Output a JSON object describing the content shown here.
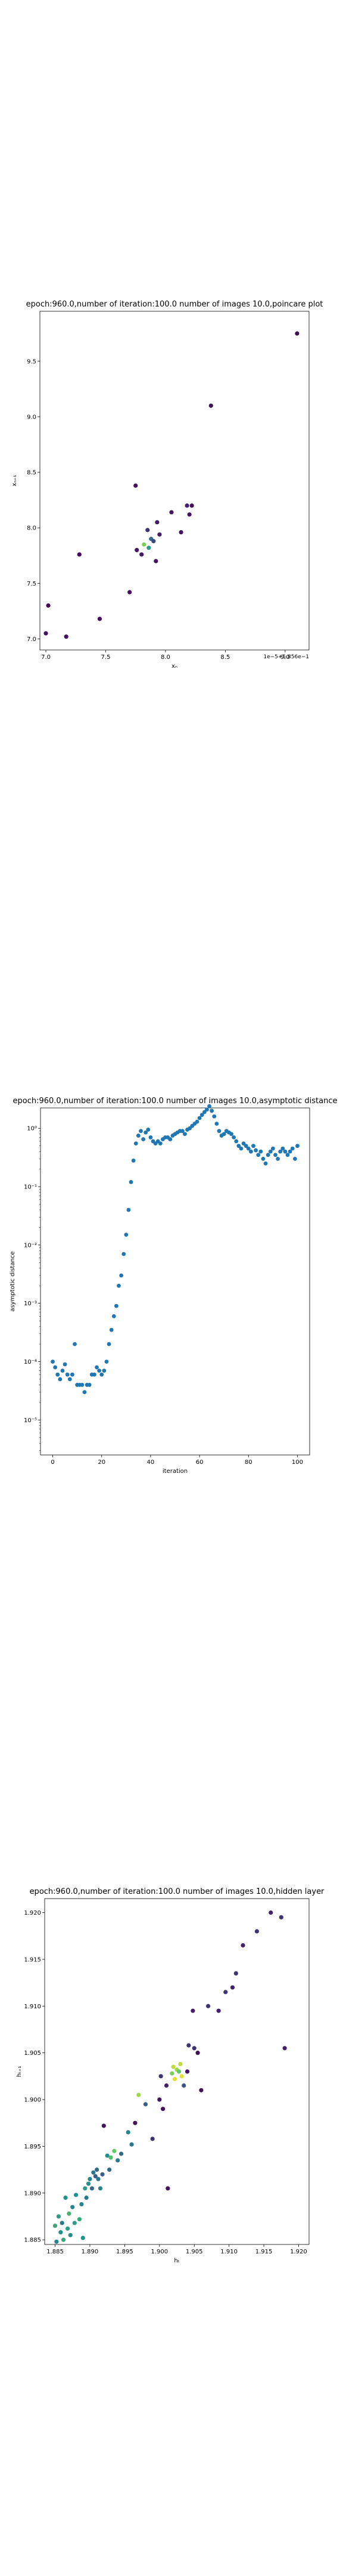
{
  "chart_data": [
    {
      "type": "scatter",
      "title": "epoch:960.0,number of iteration:100.0  number of images 10.0,poincare plot",
      "xlabel": "xₙ",
      "ylabel": "xₙ₊₁",
      "axis_offset": "1e−5+5.856e−1",
      "xlim": [
        6.95,
        9.2
      ],
      "ylim": [
        6.9,
        9.95
      ],
      "xticks": [
        "7.0",
        "7.5",
        "8.0",
        "8.5",
        "9.0"
      ],
      "yticks": [
        "7.0",
        "7.5",
        "8.0",
        "8.5",
        "9.0",
        "9.5"
      ],
      "colormap": [
        "#440154",
        "#3b528b",
        "#21918c",
        "#5ec962",
        "#fde725"
      ],
      "points": [
        {
          "x": 7.02,
          "y": 7.3,
          "c": 0.02
        },
        {
          "x": 7.0,
          "y": 7.05,
          "c": 0.04
        },
        {
          "x": 7.17,
          "y": 7.02,
          "c": 0.04
        },
        {
          "x": 7.28,
          "y": 7.76,
          "c": 0.03
        },
        {
          "x": 7.45,
          "y": 7.18,
          "c": 0.04
        },
        {
          "x": 7.7,
          "y": 7.42,
          "c": 0.05
        },
        {
          "x": 7.75,
          "y": 8.38,
          "c": 0.05
        },
        {
          "x": 7.76,
          "y": 7.8,
          "c": 0.06
        },
        {
          "x": 7.8,
          "y": 7.76,
          "c": 0.08
        },
        {
          "x": 7.82,
          "y": 7.85,
          "c": 0.8
        },
        {
          "x": 7.85,
          "y": 7.98,
          "c": 0.15
        },
        {
          "x": 7.86,
          "y": 7.82,
          "c": 0.55
        },
        {
          "x": 7.88,
          "y": 7.9,
          "c": 0.35
        },
        {
          "x": 7.9,
          "y": 7.88,
          "c": 0.22
        },
        {
          "x": 7.92,
          "y": 7.7,
          "c": 0.05
        },
        {
          "x": 7.93,
          "y": 8.05,
          "c": 0.08
        },
        {
          "x": 7.95,
          "y": 7.94,
          "c": 0.1
        },
        {
          "x": 8.05,
          "y": 8.14,
          "c": 0.06
        },
        {
          "x": 8.13,
          "y": 7.96,
          "c": 0.05
        },
        {
          "x": 8.18,
          "y": 8.2,
          "c": 0.1
        },
        {
          "x": 8.2,
          "y": 8.12,
          "c": 0.06
        },
        {
          "x": 8.22,
          "y": 8.2,
          "c": 0.05
        },
        {
          "x": 8.38,
          "y": 9.1,
          "c": 0.04
        },
        {
          "x": 9.1,
          "y": 9.75,
          "c": 0.03
        }
      ]
    },
    {
      "type": "scatter",
      "title": "epoch:960.0,number of iteration:100.0  number of images 10.0,asymptotic distance",
      "xlabel": "iteration",
      "ylabel": "asymptotic distance",
      "yscale": "log",
      "xlim": [
        -5,
        105
      ],
      "ylim_exp": [
        -5.6,
        0.35
      ],
      "xticks": [
        0,
        20,
        40,
        60,
        80,
        100
      ],
      "yticks": [
        {
          "e": 0,
          "label": "10⁰"
        },
        {
          "e": -1,
          "label": "10⁻¹"
        },
        {
          "e": -2,
          "label": "10⁻²"
        },
        {
          "e": -3,
          "label": "10⁻³"
        },
        {
          "e": -4,
          "label": "10⁻⁴"
        },
        {
          "e": -5,
          "label": "10⁻⁵"
        }
      ],
      "color": "#1f77b4",
      "y": [
        0.0001,
        8e-05,
        6e-05,
        5e-05,
        7e-05,
        9e-05,
        6e-05,
        5e-05,
        6e-05,
        0.0002,
        4e-05,
        4e-05,
        4e-05,
        3e-05,
        4e-05,
        4e-05,
        6e-05,
        6e-05,
        8e-05,
        7e-05,
        6e-05,
        7e-05,
        0.0001,
        0.0002,
        0.00035,
        0.0006,
        0.0009,
        0.002,
        0.003,
        0.007,
        0.015,
        0.04,
        0.12,
        0.28,
        0.55,
        0.75,
        0.9,
        0.65,
        0.85,
        0.95,
        0.7,
        0.6,
        0.55,
        0.6,
        0.55,
        0.65,
        0.7,
        0.7,
        0.65,
        0.75,
        0.8,
        0.85,
        0.9,
        0.9,
        0.8,
        0.95,
        1.0,
        1.1,
        1.2,
        1.3,
        1.5,
        1.7,
        1.9,
        2.1,
        2.4,
        2.0,
        1.6,
        1.2,
        0.9,
        0.75,
        0.8,
        0.9,
        0.85,
        0.8,
        0.7,
        0.6,
        0.5,
        0.45,
        0.55,
        0.5,
        0.45,
        0.4,
        0.5,
        0.42,
        0.35,
        0.4,
        0.3,
        0.25,
        0.35,
        0.4,
        0.45,
        0.35,
        0.3,
        0.4,
        0.45,
        0.4,
        0.35,
        0.4,
        0.45,
        0.3,
        0.5
      ]
    },
    {
      "type": "scatter",
      "title": "epoch:960.0,number of iteration:100.0  number of images 10.0,hidden layer",
      "xlabel": "hₜ",
      "ylabel": "hₜ₊₁",
      "xlim": [
        1.8835,
        1.9215
      ],
      "ylim": [
        1.8845,
        1.9215
      ],
      "xticks": [
        "1.885",
        "1.890",
        "1.895",
        "1.900",
        "1.905",
        "1.910",
        "1.915",
        "1.920"
      ],
      "yticks": [
        "1.885",
        "1.890",
        "1.895",
        "1.900",
        "1.905",
        "1.910",
        "1.915",
        "1.920"
      ],
      "colormap": [
        "#440154",
        "#3b528b",
        "#21918c",
        "#5ec962",
        "#fde725"
      ],
      "points": [
        {
          "x": 1.885,
          "y": 1.8865,
          "c": 0.6
        },
        {
          "x": 1.8852,
          "y": 1.8848,
          "c": 0.45
        },
        {
          "x": 1.8855,
          "y": 1.8875,
          "c": 0.55
        },
        {
          "x": 1.8858,
          "y": 1.8858,
          "c": 0.5
        },
        {
          "x": 1.886,
          "y": 1.8868,
          "c": 0.4
        },
        {
          "x": 1.8862,
          "y": 1.885,
          "c": 0.6
        },
        {
          "x": 1.8865,
          "y": 1.8895,
          "c": 0.5
        },
        {
          "x": 1.8868,
          "y": 1.8862,
          "c": 0.55
        },
        {
          "x": 1.887,
          "y": 1.8878,
          "c": 0.65
        },
        {
          "x": 1.8872,
          "y": 1.8855,
          "c": 0.5
        },
        {
          "x": 1.8875,
          "y": 1.8885,
          "c": 0.45
        },
        {
          "x": 1.8878,
          "y": 1.8868,
          "c": 0.55
        },
        {
          "x": 1.888,
          "y": 1.8898,
          "c": 0.5
        },
        {
          "x": 1.8885,
          "y": 1.8872,
          "c": 0.6
        },
        {
          "x": 1.8888,
          "y": 1.8888,
          "c": 0.45
        },
        {
          "x": 1.889,
          "y": 1.8852,
          "c": 0.5
        },
        {
          "x": 1.8893,
          "y": 1.8905,
          "c": 0.55
        },
        {
          "x": 1.8895,
          "y": 1.8895,
          "c": 0.4
        },
        {
          "x": 1.8898,
          "y": 1.891,
          "c": 0.5
        },
        {
          "x": 1.89,
          "y": 1.8915,
          "c": 0.45
        },
        {
          "x": 1.8903,
          "y": 1.8905,
          "c": 0.35
        },
        {
          "x": 1.8905,
          "y": 1.8922,
          "c": 0.4
        },
        {
          "x": 1.8908,
          "y": 1.8918,
          "c": 0.3
        },
        {
          "x": 1.891,
          "y": 1.8925,
          "c": 0.35
        },
        {
          "x": 1.8912,
          "y": 1.8915,
          "c": 0.4
        },
        {
          "x": 1.8915,
          "y": 1.8905,
          "c": 0.45
        },
        {
          "x": 1.8918,
          "y": 1.892,
          "c": 0.3
        },
        {
          "x": 1.892,
          "y": 1.8972,
          "c": 0.05
        },
        {
          "x": 1.8925,
          "y": 1.894,
          "c": 0.5
        },
        {
          "x": 1.8928,
          "y": 1.8925,
          "c": 0.35
        },
        {
          "x": 1.893,
          "y": 1.8938,
          "c": 0.7
        },
        {
          "x": 1.8935,
          "y": 1.8945,
          "c": 0.75
        },
        {
          "x": 1.894,
          "y": 1.8935,
          "c": 0.4
        },
        {
          "x": 1.8945,
          "y": 1.8942,
          "c": 0.35
        },
        {
          "x": 1.8955,
          "y": 1.8965,
          "c": 0.45
        },
        {
          "x": 1.896,
          "y": 1.8952,
          "c": 0.4
        },
        {
          "x": 1.8965,
          "y": 1.8975,
          "c": 0.05
        },
        {
          "x": 1.897,
          "y": 1.9005,
          "c": 0.85
        },
        {
          "x": 1.898,
          "y": 1.8995,
          "c": 0.3
        },
        {
          "x": 1.899,
          "y": 1.8958,
          "c": 0.15
        },
        {
          "x": 1.9,
          "y": 1.9,
          "c": 0.05
        },
        {
          "x": 1.9002,
          "y": 1.9025,
          "c": 0.15
        },
        {
          "x": 1.9005,
          "y": 1.899,
          "c": 0.05
        },
        {
          "x": 1.901,
          "y": 1.9015,
          "c": 0.1
        },
        {
          "x": 1.9012,
          "y": 1.8905,
          "c": 0.05
        },
        {
          "x": 1.9018,
          "y": 1.9028,
          "c": 0.8
        },
        {
          "x": 1.902,
          "y": 1.9035,
          "c": 0.9
        },
        {
          "x": 1.9022,
          "y": 1.9022,
          "c": 0.95
        },
        {
          "x": 1.9025,
          "y": 1.9032,
          "c": 0.85
        },
        {
          "x": 1.9028,
          "y": 1.903,
          "c": 0.75
        },
        {
          "x": 1.903,
          "y": 1.9038,
          "c": 0.9
        },
        {
          "x": 1.9032,
          "y": 1.9025,
          "c": 0.95
        },
        {
          "x": 1.9035,
          "y": 1.9015,
          "c": 0.25
        },
        {
          "x": 1.904,
          "y": 1.903,
          "c": 0.05
        },
        {
          "x": 1.9042,
          "y": 1.9058,
          "c": 0.15
        },
        {
          "x": 1.9048,
          "y": 1.9095,
          "c": 0.1
        },
        {
          "x": 1.905,
          "y": 1.9055,
          "c": 0.15
        },
        {
          "x": 1.9055,
          "y": 1.905,
          "c": 0.05
        },
        {
          "x": 1.906,
          "y": 1.901,
          "c": 0.05
        },
        {
          "x": 1.907,
          "y": 1.91,
          "c": 0.15
        },
        {
          "x": 1.9085,
          "y": 1.9095,
          "c": 0.1
        },
        {
          "x": 1.9095,
          "y": 1.9115,
          "c": 0.15
        },
        {
          "x": 1.9105,
          "y": 1.912,
          "c": 0.1
        },
        {
          "x": 1.911,
          "y": 1.9135,
          "c": 0.15
        },
        {
          "x": 1.912,
          "y": 1.9165,
          "c": 0.1
        },
        {
          "x": 1.914,
          "y": 1.918,
          "c": 0.15
        },
        {
          "x": 1.916,
          "y": 1.92,
          "c": 0.1
        },
        {
          "x": 1.9175,
          "y": 1.9195,
          "c": 0.15
        },
        {
          "x": 1.918,
          "y": 1.9055,
          "c": 0.1
        }
      ]
    }
  ]
}
